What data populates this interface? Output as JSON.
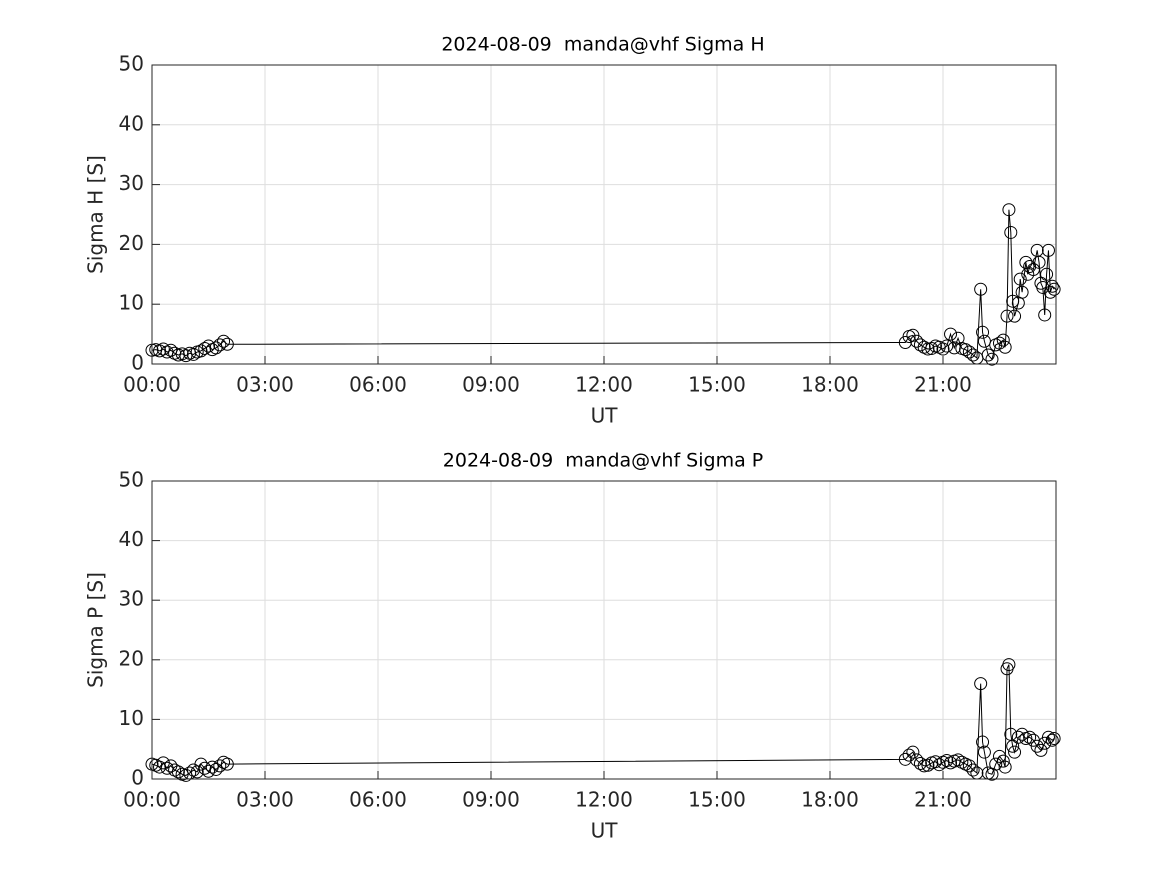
{
  "chart_data": [
    {
      "type": "line",
      "title": "2024-08-09  manda@vhf Sigma H",
      "xlabel": "UT",
      "ylabel": "Sigma H [S]",
      "x": [
        0.0,
        0.1,
        0.2,
        0.3,
        0.4,
        0.5,
        0.6,
        0.7,
        0.8,
        0.9,
        1.0,
        1.1,
        1.2,
        1.3,
        1.4,
        1.5,
        1.6,
        1.7,
        1.8,
        1.9,
        2.0,
        20.0,
        20.1,
        20.2,
        20.3,
        20.4,
        20.5,
        20.6,
        20.7,
        20.8,
        20.9,
        21.0,
        21.1,
        21.2,
        21.3,
        21.4,
        21.5,
        21.6,
        21.7,
        21.8,
        21.9,
        22.0,
        22.05,
        22.1,
        22.2,
        22.3,
        22.4,
        22.5,
        22.6,
        22.65,
        22.7,
        22.75,
        22.8,
        22.85,
        22.9,
        23.0,
        23.05,
        23.1,
        23.2,
        23.25,
        23.3,
        23.4,
        23.5,
        23.55,
        23.6,
        23.65,
        23.7,
        23.75,
        23.8,
        23.85,
        23.9,
        23.95
      ],
      "values": [
        2.3,
        2.4,
        2.2,
        2.5,
        2.0,
        2.3,
        1.8,
        1.5,
        1.7,
        1.4,
        1.8,
        1.6,
        2.0,
        2.2,
        2.6,
        3.0,
        2.4,
        2.7,
        3.2,
        3.8,
        3.3,
        3.6,
        4.6,
        4.8,
        3.8,
        3.2,
        2.8,
        2.5,
        2.6,
        3.0,
        2.8,
        2.5,
        3.0,
        5.0,
        2.7,
        4.3,
        2.6,
        2.4,
        2.0,
        1.5,
        1.0,
        12.5,
        5.3,
        3.8,
        1.5,
        0.8,
        3.2,
        3.5,
        4.0,
        2.8,
        8.0,
        25.8,
        22.0,
        10.5,
        8.0,
        10.2,
        14.2,
        12.0,
        17.0,
        15.0,
        16.3,
        15.8,
        19.0,
        17.0,
        13.5,
        12.8,
        8.2,
        15.0,
        19.0,
        12.0,
        13.0,
        12.5
      ],
      "color": "#000000",
      "grid": true,
      "xlim": [
        0,
        24
      ],
      "xticks": [
        {
          "value": 0,
          "label": "00:00"
        },
        {
          "value": 3,
          "label": "03:00"
        },
        {
          "value": 6,
          "label": "06:00"
        },
        {
          "value": 9,
          "label": "09:00"
        },
        {
          "value": 12,
          "label": "12:00"
        },
        {
          "value": 15,
          "label": "15:00"
        },
        {
          "value": 18,
          "label": "18:00"
        },
        {
          "value": 21,
          "label": "21:00"
        }
      ],
      "ylim": [
        0,
        50
      ],
      "yticks": [
        0,
        10,
        20,
        30,
        40,
        50
      ]
    },
    {
      "type": "line",
      "title": "2024-08-09  manda@vhf Sigma P",
      "xlabel": "UT",
      "ylabel": "Sigma P [S]",
      "x": [
        0.0,
        0.1,
        0.2,
        0.3,
        0.4,
        0.5,
        0.6,
        0.7,
        0.8,
        0.9,
        1.0,
        1.1,
        1.2,
        1.3,
        1.4,
        1.5,
        1.6,
        1.7,
        1.8,
        1.9,
        2.0,
        20.0,
        20.1,
        20.2,
        20.3,
        20.4,
        20.5,
        20.6,
        20.7,
        20.8,
        20.9,
        21.0,
        21.1,
        21.2,
        21.3,
        21.4,
        21.5,
        21.6,
        21.7,
        21.8,
        21.9,
        22.0,
        22.05,
        22.1,
        22.2,
        22.3,
        22.4,
        22.5,
        22.6,
        22.65,
        22.7,
        22.75,
        22.8,
        22.85,
        22.9,
        23.0,
        23.1,
        23.2,
        23.3,
        23.4,
        23.5,
        23.6,
        23.7,
        23.8,
        23.9,
        23.95
      ],
      "values": [
        2.5,
        2.3,
        2.0,
        2.7,
        1.8,
        2.2,
        1.5,
        1.2,
        0.8,
        0.6,
        1.0,
        1.5,
        1.2,
        2.5,
        1.8,
        1.3,
        2.0,
        1.6,
        2.2,
        2.8,
        2.5,
        3.3,
        4.0,
        4.5,
        3.2,
        2.6,
        2.2,
        2.3,
        2.7,
        2.9,
        2.4,
        2.8,
        3.1,
        2.7,
        3.0,
        3.2,
        2.8,
        2.5,
        2.2,
        1.5,
        1.0,
        16.0,
        6.2,
        4.5,
        1.0,
        0.8,
        2.5,
        3.8,
        3.0,
        2.0,
        18.5,
        19.2,
        7.5,
        5.5,
        4.5,
        7.0,
        7.5,
        6.8,
        7.0,
        6.5,
        5.5,
        4.8,
        6.0,
        7.0,
        6.5,
        6.8
      ],
      "color": "#000000",
      "grid": true,
      "xlim": [
        0,
        24
      ],
      "xticks": [
        {
          "value": 0,
          "label": "00:00"
        },
        {
          "value": 3,
          "label": "03:00"
        },
        {
          "value": 6,
          "label": "06:00"
        },
        {
          "value": 9,
          "label": "09:00"
        },
        {
          "value": 12,
          "label": "12:00"
        },
        {
          "value": 15,
          "label": "15:00"
        },
        {
          "value": 18,
          "label": "18:00"
        },
        {
          "value": 21,
          "label": "21:00"
        }
      ],
      "ylim": [
        0,
        50
      ],
      "yticks": [
        0,
        10,
        20,
        30,
        40,
        50
      ]
    }
  ]
}
